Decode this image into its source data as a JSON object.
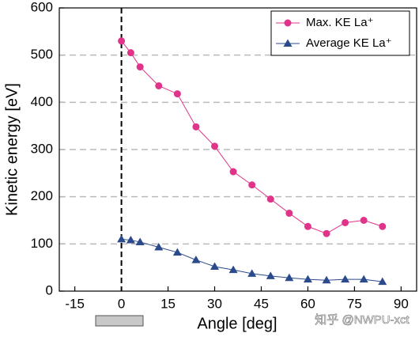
{
  "chart_data": {
    "type": "line",
    "x_label": "Angle [deg]",
    "y_label": "Kinetic energy [eV]",
    "xlim": [
      -20,
      95
    ],
    "xticks": [
      -15,
      0,
      15,
      30,
      45,
      60,
      75,
      90
    ],
    "ylim": [
      0,
      600
    ],
    "yticks": [
      0,
      100,
      200,
      300,
      400,
      500,
      600
    ],
    "grid": "y",
    "legend": "upper right",
    "vline_x": 0,
    "x": [
      0,
      3,
      6,
      12,
      18,
      24,
      30,
      36,
      42,
      48,
      54,
      60,
      66,
      72,
      78,
      84
    ],
    "series": [
      {
        "name": "Max. KE La⁺",
        "color": "#e0338a",
        "marker": "circle",
        "values": [
          530,
          505,
          475,
          435,
          418,
          348,
          307,
          253,
          225,
          195,
          165,
          137,
          122,
          145,
          150,
          137
        ]
      },
      {
        "name": "Average KE La⁺",
        "color": "#2b4a8c",
        "marker": "triangle",
        "values": [
          110,
          108,
          104,
          93,
          82,
          66,
          52,
          45,
          37,
          32,
          28,
          25,
          23,
          25,
          25,
          20
        ]
      }
    ],
    "watermark": "知乎 @NWPU-xct"
  }
}
